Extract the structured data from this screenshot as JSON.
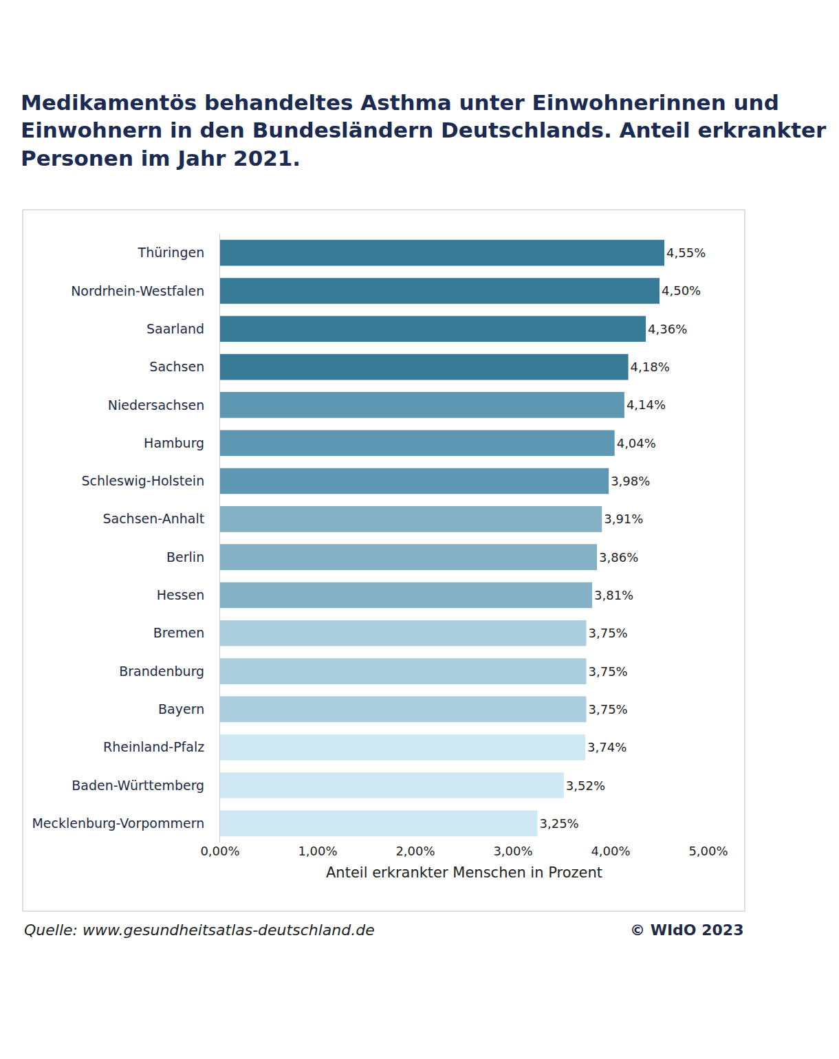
{
  "chart_data": {
    "type": "bar",
    "orientation": "horizontal",
    "title": "Medikamentös behandeltes Asthma unter Einwohnerinnen und Einwohnern in den Bundesländern Deutschlands. Anteil erkrankter Personen im Jahr 2021.",
    "x_label": "Anteil erkrankter Menschen in Prozent",
    "annotations": [
      "Quelle: www.gesundheitsatlas-deutschland.de",
      "© WIdO 2023"
    ],
    "categories": [
      "Thüringen",
      "Nordrhein-Westfalen",
      "Saarland",
      "Sachsen",
      "Niedersachsen",
      "Hamburg",
      "Schleswig-Holstein",
      "Sachsen-Anhalt",
      "Berlin",
      "Hessen",
      "Bremen",
      "Brandenburg",
      "Bayern",
      "Rheinland-Pfalz",
      "Baden-Württemberg",
      "Mecklenburg-Vorpommern"
    ],
    "values": [
      4.55,
      4.5,
      4.36,
      4.18,
      4.14,
      4.04,
      3.98,
      3.91,
      3.86,
      3.81,
      3.75,
      3.75,
      3.75,
      3.74,
      3.52,
      3.25
    ],
    "value_labels": [
      "4,55%",
      "4,50%",
      "4,36%",
      "4,18%",
      "4,14%",
      "4,04%",
      "3,98%",
      "3,91%",
      "3,86%",
      "3,81%",
      "3,75%",
      "3,75%",
      "3,75%",
      "3,74%",
      "3,52%",
      "3,25%"
    ],
    "colors": [
      "#367a96",
      "#367a96",
      "#367a96",
      "#367a96",
      "#5d97b1",
      "#5d97b1",
      "#5d97b1",
      "#85b1c6",
      "#85b1c6",
      "#85b1c6",
      "#abcedf",
      "#abcedf",
      "#abcedf",
      "#d0e8f4",
      "#d0e8f4",
      "#d0e8f4"
    ],
    "data_labels": true,
    "grid": false,
    "xlim": [
      0,
      5
    ],
    "xticks": [
      {
        "value": 0,
        "label": "0,00%"
      },
      {
        "value": 1,
        "label": "1,00%"
      },
      {
        "value": 2,
        "label": "2,00%"
      },
      {
        "value": 3,
        "label": "3,00%"
      },
      {
        "value": 4,
        "label": "4,00%"
      },
      {
        "value": 5,
        "label": "5,00%"
      }
    ]
  }
}
